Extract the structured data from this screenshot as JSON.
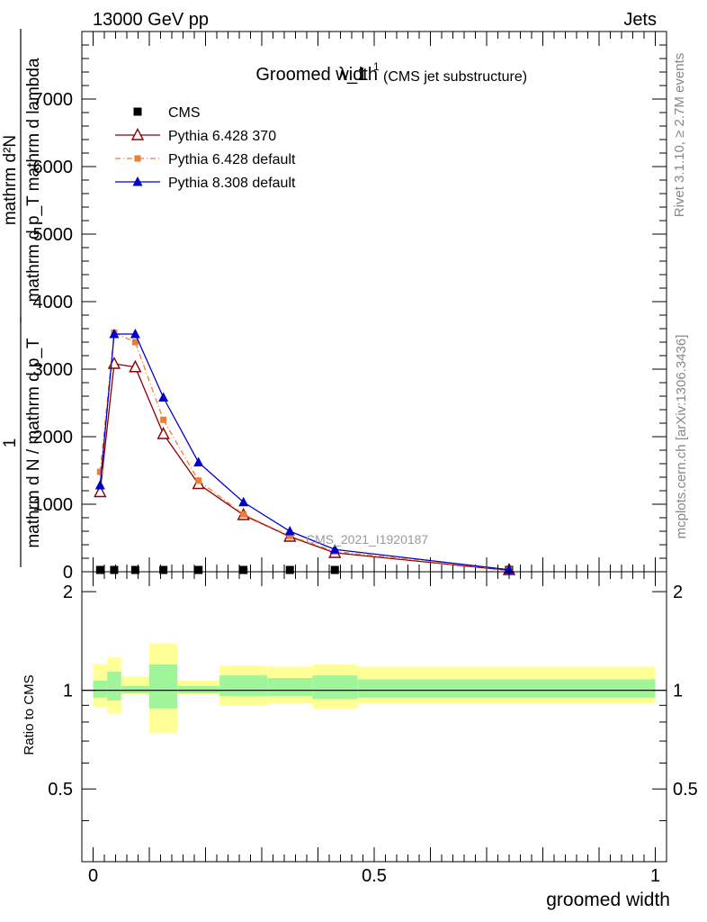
{
  "header": {
    "left": "13000 GeV pp",
    "right": "Jets"
  },
  "side": {
    "rivet": "Rivet 3.1.10, ≥ 2.7M events",
    "mcplots": "mcplots.cern.ch [arXiv:1306.3436]"
  },
  "chart_data": [
    {
      "type": "line",
      "title": "Groomed width",
      "title_symbol": "λ_1",
      "title_sup": "1",
      "title_note": "(CMS jet substructure)",
      "watermark": "CMS_2021_I1920187",
      "ylabel_top": "mathrm d²N",
      "ylabel_bottom": "mathrm d p_T mathrm d lambda",
      "ylabel2_one": "1",
      "ylabel2_text": "mathrm d N / mathrm d p_T",
      "xlim": [
        -0.02,
        1.02
      ],
      "ylim": [
        0,
        8000
      ],
      "yticks": [
        0,
        1000,
        2000,
        3000,
        4000,
        5000,
        6000,
        7000
      ],
      "ytick_labels": [
        "0",
        "1000",
        "2000",
        "3000",
        "4000",
        "5000",
        "6000",
        "7000"
      ],
      "legend_position": "top-left",
      "series": [
        {
          "name": "CMS",
          "color": "#000000",
          "marker": "square",
          "x": [
            0.0125,
            0.0375,
            0.075,
            0.125,
            0.1875,
            0.2675,
            0.35,
            0.43,
            0.74
          ],
          "y": [
            10,
            10,
            10,
            10,
            10,
            10,
            10,
            10,
            10
          ]
        },
        {
          "name": "Pythia 6.428 370",
          "color": "#8b0000",
          "marker": "open-triangle",
          "x": [
            0.0125,
            0.0375,
            0.075,
            0.125,
            0.1875,
            0.2675,
            0.35,
            0.43,
            0.74
          ],
          "y": [
            1180,
            3080,
            3030,
            2040,
            1300,
            840,
            520,
            280,
            20
          ]
        },
        {
          "name": "Pythia 6.428 default",
          "color": "#ee7d33",
          "marker": "square",
          "dash": true,
          "x": [
            0.0125,
            0.0375,
            0.075,
            0.125,
            0.1875,
            0.2675,
            0.35,
            0.43,
            0.74
          ],
          "y": [
            1480,
            3540,
            3400,
            2250,
            1350,
            850,
            530,
            300,
            25
          ]
        },
        {
          "name": "Pythia 8.308 default",
          "color": "#0000cc",
          "marker": "triangle",
          "x": [
            0.0125,
            0.0375,
            0.075,
            0.125,
            0.1875,
            0.2675,
            0.35,
            0.43,
            0.74
          ],
          "y": [
            1280,
            3520,
            3520,
            2580,
            1620,
            1030,
            600,
            330,
            30
          ]
        }
      ]
    },
    {
      "type": "area",
      "ylabel": "Ratio to CMS",
      "xlabel": "groomed width",
      "xlim": [
        -0.02,
        1.02
      ],
      "ylim": [
        0.3,
        2.3
      ],
      "yticks": [
        0.5,
        1,
        2
      ],
      "ytick_labels": [
        "0.5",
        "1",
        "2"
      ],
      "xticks": [
        0,
        0.5,
        1
      ],
      "xtick_labels": [
        "0",
        "0.5",
        "1"
      ],
      "bands": [
        {
          "x0": 0.0,
          "x1": 0.025,
          "stat": [
            0.95,
            1.07
          ],
          "total": [
            0.89,
            1.2
          ]
        },
        {
          "x0": 0.025,
          "x1": 0.05,
          "stat": [
            0.93,
            1.14
          ],
          "total": [
            0.85,
            1.26
          ]
        },
        {
          "x0": 0.05,
          "x1": 0.1,
          "stat": [
            0.98,
            1.03
          ],
          "total": [
            0.97,
            1.1
          ]
        },
        {
          "x0": 0.1,
          "x1": 0.15,
          "stat": [
            0.88,
            1.2
          ],
          "total": [
            0.74,
            1.39
          ]
        },
        {
          "x0": 0.15,
          "x1": 0.225,
          "stat": [
            0.98,
            1.03
          ],
          "total": [
            0.97,
            1.07
          ]
        },
        {
          "x0": 0.225,
          "x1": 0.31,
          "stat": [
            0.96,
            1.11
          ],
          "total": [
            0.9,
            1.19
          ]
        },
        {
          "x0": 0.31,
          "x1": 0.39,
          "stat": [
            0.96,
            1.09
          ],
          "total": [
            0.91,
            1.18
          ]
        },
        {
          "x0": 0.39,
          "x1": 0.47,
          "stat": [
            0.94,
            1.11
          ],
          "total": [
            0.88,
            1.2
          ]
        },
        {
          "x0": 0.47,
          "x1": 1.0,
          "stat": [
            0.95,
            1.08
          ],
          "total": [
            0.91,
            1.18
          ]
        }
      ],
      "stat_color": "#a0f59a",
      "total_color": "#ffff96"
    }
  ]
}
